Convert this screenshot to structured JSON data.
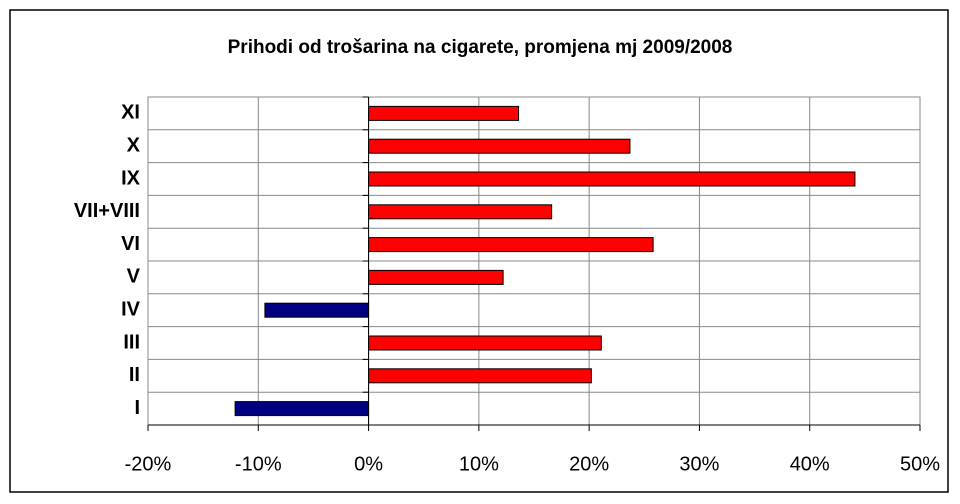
{
  "chart_data": {
    "type": "bar",
    "orientation": "horizontal",
    "title": "Prihodi od trošarina na cigarete, promjena mj 2009/2008",
    "categories": [
      "I",
      "II",
      "III",
      "IV",
      "V",
      "VI",
      "VII+VIII",
      "IX",
      "X",
      "XI"
    ],
    "values": [
      -12.1,
      20.2,
      21.1,
      -9.4,
      12.2,
      25.8,
      16.6,
      44.1,
      23.7,
      13.6
    ],
    "color": "#ff0000",
    "negative_color": "#000080",
    "xlim": [
      -20,
      50
    ],
    "xticks": [
      {
        "value": -20,
        "label": "-20%"
      },
      {
        "value": -10,
        "label": "-10%"
      },
      {
        "value": 0,
        "label": "0%"
      },
      {
        "value": 10,
        "label": "10%"
      },
      {
        "value": 20,
        "label": "20%"
      },
      {
        "value": 30,
        "label": "30%"
      },
      {
        "value": 40,
        "label": "40%"
      },
      {
        "value": 50,
        "label": "50%"
      }
    ],
    "grid": true
  }
}
